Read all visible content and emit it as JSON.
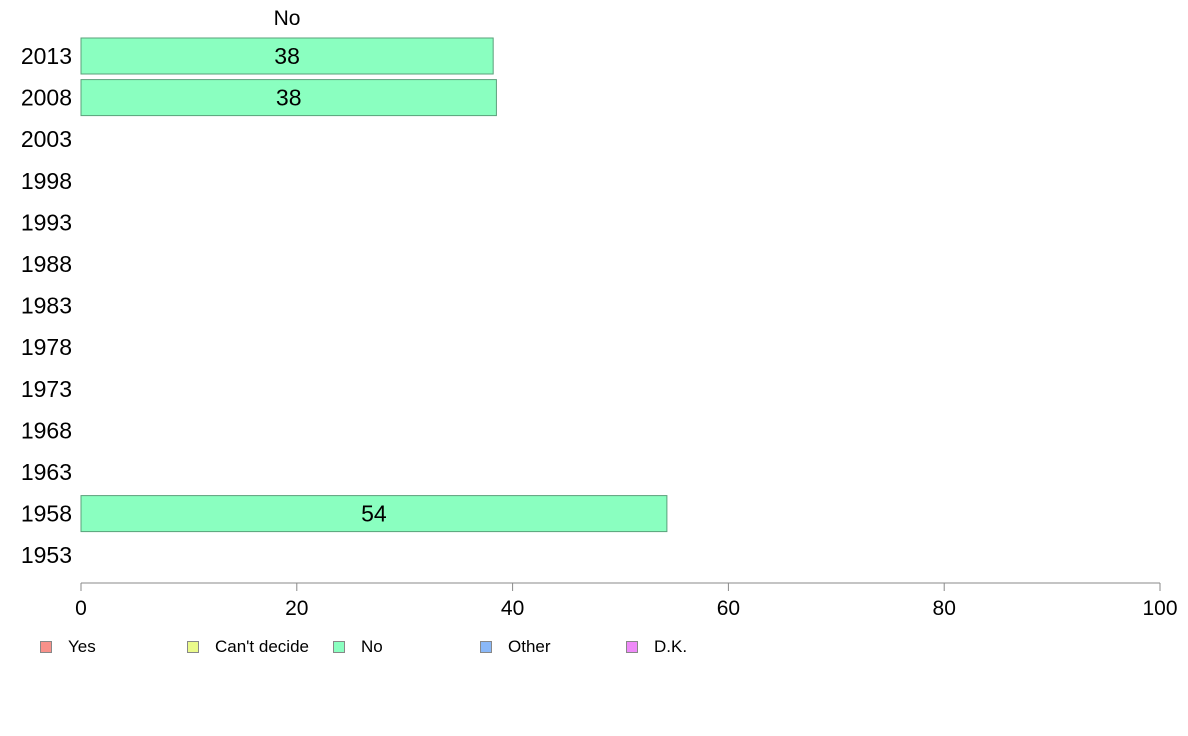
{
  "chart_data": {
    "type": "bar",
    "orientation": "horizontal",
    "stacked": true,
    "series_label": "No",
    "categories": [
      "2013",
      "2008",
      "2003",
      "1998",
      "1993",
      "1988",
      "1983",
      "1978",
      "1973",
      "1968",
      "1963",
      "1958",
      "1953"
    ],
    "series": [
      {
        "name": "Yes",
        "color": "#f8918a",
        "values": [
          null,
          null,
          null,
          null,
          null,
          null,
          null,
          null,
          null,
          null,
          null,
          null,
          null
        ]
      },
      {
        "name": "Can't decide",
        "color": "#eafa8a",
        "values": [
          null,
          null,
          null,
          null,
          null,
          null,
          null,
          null,
          null,
          null,
          null,
          null,
          null
        ]
      },
      {
        "name": "No",
        "color": "#8affc0",
        "values": [
          38.2,
          38.5,
          null,
          null,
          null,
          null,
          null,
          null,
          null,
          null,
          null,
          54.3,
          null
        ],
        "labels": [
          "38",
          "38",
          "",
          "",
          "",
          "",
          "",
          "",
          "",
          "",
          "",
          "54",
          ""
        ]
      },
      {
        "name": "Other",
        "color": "#8ab8f8",
        "values": [
          null,
          null,
          null,
          null,
          null,
          null,
          null,
          null,
          null,
          null,
          null,
          null,
          null
        ]
      },
      {
        "name": "D.K.",
        "color": "#ee8af8",
        "values": [
          null,
          null,
          null,
          null,
          null,
          null,
          null,
          null,
          null,
          null,
          null,
          null,
          null
        ]
      }
    ],
    "xlim": [
      0,
      100
    ],
    "xticks": [
      0,
      20,
      40,
      60,
      80,
      100
    ],
    "title": "",
    "xlabel": "",
    "ylabel": "",
    "grid": false,
    "legend": "bottom"
  }
}
